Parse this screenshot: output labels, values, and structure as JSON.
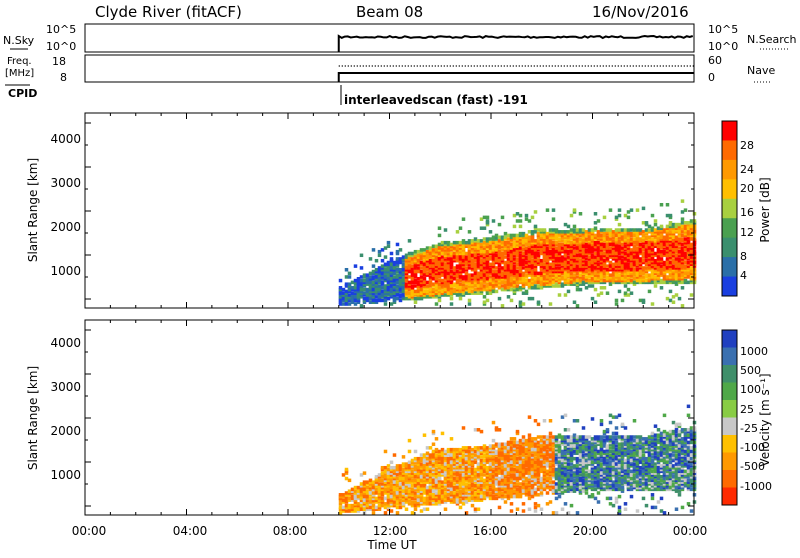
{
  "header": {
    "station": "Clyde River (fitACF)",
    "beam": "Beam 08",
    "date": "16/Nov/2016"
  },
  "nsky_panel": {
    "left_label": "N.Sky",
    "left_ticks": [
      "10^5",
      "10^0"
    ],
    "right_label": "N.Search",
    "right_ticks": [
      "10^5",
      "10^0"
    ]
  },
  "freq_panel": {
    "left_label_line1": "Freq.",
    "left_label_line2": "[MHz]",
    "left_ticks": [
      "18",
      "8"
    ],
    "right_label": "Nave",
    "right_ticks": [
      "60",
      "0"
    ]
  },
  "cpid": {
    "label": "CPID",
    "value": "interleavedscan (fast) -191"
  },
  "x_axis": {
    "title": "Time UT",
    "ticks": [
      "00:00",
      "04:00",
      "08:00",
      "12:00",
      "16:00",
      "20:00",
      "00:00"
    ]
  },
  "power_panel": {
    "ylabel": "Slant Range [km]",
    "yticks": [
      "4000",
      "3000",
      "2000",
      "1000"
    ],
    "colorbar_label": "Power [dB]",
    "colorbar_ticks": [
      "28",
      "24",
      "20",
      "16",
      "12",
      "8",
      "4"
    ],
    "colorbar_colors": [
      "#ff0000",
      "#ff6a00",
      "#ff9900",
      "#ffbf00",
      "#a8d040",
      "#4aa050",
      "#3a8f6e",
      "#2a6fa8",
      "#1a3fe0"
    ]
  },
  "velocity_panel": {
    "ylabel": "Slant Range [km]",
    "yticks": [
      "4000",
      "3000",
      "2000",
      "1000"
    ],
    "colorbar_label": "Velocity  [m s⁻¹]",
    "colorbar_ticks": [
      "1000",
      "500",
      "100",
      "25",
      "-25",
      "-100",
      "-500",
      "-1000"
    ],
    "colorbar_colors": [
      "#2040c0",
      "#3a70b0",
      "#3f8f6a",
      "#4fa848",
      "#88cc44",
      "#c8c8c8",
      "#ffc000",
      "#ff9900",
      "#ff6a00",
      "#ff2a00"
    ]
  },
  "chart_data": {
    "type": "heatmap",
    "x_range_hours": [
      0,
      24
    ],
    "y_range_km": [
      180,
      4500
    ],
    "data_start_hour": 10,
    "echo_region": [
      {
        "hour": 10,
        "lower_km": 200,
        "upper_km": 600
      },
      {
        "hour": 12,
        "lower_km": 300,
        "upper_km": 1200
      },
      {
        "hour": 14,
        "lower_km": 400,
        "upper_km": 1600
      },
      {
        "hour": 16,
        "lower_km": 500,
        "upper_km": 1700
      },
      {
        "hour": 18,
        "lower_km": 600,
        "upper_km": 1900
      },
      {
        "hour": 20,
        "lower_km": 700,
        "upper_km": 1900
      },
      {
        "hour": 22,
        "lower_km": 700,
        "upper_km": 1900
      },
      {
        "hour": 24,
        "lower_km": 700,
        "upper_km": 2100
      }
    ],
    "freq_mhz": 10,
    "nave": 38
  }
}
